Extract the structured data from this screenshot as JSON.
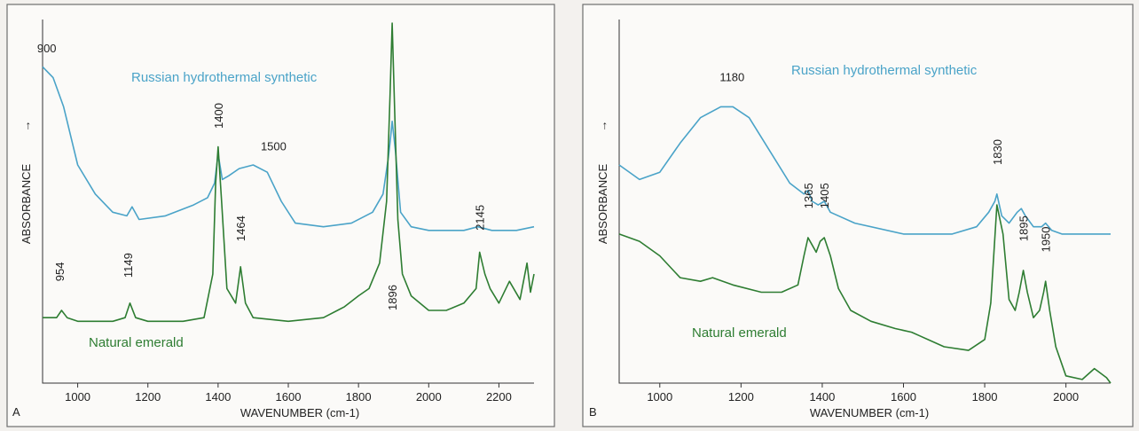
{
  "colors": {
    "synthetic": "#4aa3c8",
    "natural": "#2e7d32"
  },
  "chart_data": [
    {
      "type": "line",
      "panel_label": "A",
      "xlabel": "WAVENUMBER (cm-1)",
      "ylabel": "ABSORBANCE",
      "ylabel_arrow": "→",
      "xlim": [
        900,
        2300
      ],
      "xticks": [
        1000,
        1200,
        1400,
        1600,
        1800,
        2000,
        2200
      ],
      "ylim": [
        0,
        1
      ],
      "series": [
        {
          "name": "Russian hydrothermal synthetic",
          "color": "#4aa3c8",
          "x": [
            900,
            930,
            960,
            1000,
            1050,
            1100,
            1140,
            1155,
            1175,
            1250,
            1330,
            1370,
            1390,
            1400,
            1412,
            1430,
            1460,
            1500,
            1540,
            1580,
            1620,
            1700,
            1780,
            1840,
            1870,
            1885,
            1892,
            1896,
            1905,
            1920,
            1950,
            2000,
            2100,
            2140,
            2180,
            2250,
            2300
          ],
          "y": [
            0.87,
            0.84,
            0.76,
            0.6,
            0.52,
            0.47,
            0.46,
            0.485,
            0.45,
            0.46,
            0.49,
            0.51,
            0.55,
            0.63,
            0.56,
            0.57,
            0.59,
            0.6,
            0.58,
            0.5,
            0.44,
            0.43,
            0.44,
            0.47,
            0.52,
            0.62,
            0.68,
            0.72,
            0.64,
            0.47,
            0.43,
            0.42,
            0.42,
            0.43,
            0.42,
            0.42,
            0.43
          ]
        },
        {
          "name": "Natural emerald",
          "color": "#2e7d32",
          "x": [
            900,
            940,
            954,
            970,
            1000,
            1100,
            1135,
            1149,
            1165,
            1200,
            1300,
            1360,
            1385,
            1393,
            1400,
            1410,
            1425,
            1450,
            1464,
            1478,
            1500,
            1600,
            1700,
            1760,
            1800,
            1830,
            1860,
            1880,
            1890,
            1896,
            1903,
            1912,
            1925,
            1950,
            2000,
            2050,
            2100,
            2135,
            2145,
            2160,
            2175,
            2200,
            2230,
            2260,
            2280,
            2290,
            2300
          ],
          "y": [
            0.18,
            0.18,
            0.2,
            0.18,
            0.17,
            0.17,
            0.18,
            0.22,
            0.18,
            0.17,
            0.17,
            0.18,
            0.3,
            0.55,
            0.65,
            0.5,
            0.26,
            0.22,
            0.32,
            0.22,
            0.18,
            0.17,
            0.18,
            0.21,
            0.24,
            0.26,
            0.33,
            0.5,
            0.8,
            0.99,
            0.75,
            0.45,
            0.3,
            0.24,
            0.2,
            0.2,
            0.22,
            0.26,
            0.36,
            0.3,
            0.26,
            0.22,
            0.28,
            0.23,
            0.33,
            0.25,
            0.3
          ]
        }
      ],
      "series_labels": [
        "Russian hydrothermal synthetic",
        "Natural emerald"
      ],
      "annotations": [
        {
          "text": "900",
          "x": 912,
          "y": 0.91,
          "orient": "h"
        },
        {
          "text": "1500",
          "x": 1558,
          "y": 0.64,
          "orient": "h"
        },
        {
          "text": "954",
          "x": 948,
          "y": 0.28,
          "orient": "v"
        },
        {
          "text": "1149",
          "x": 1142,
          "y": 0.29,
          "orient": "v"
        },
        {
          "text": "1400",
          "x": 1400,
          "y": 0.7,
          "orient": "v"
        },
        {
          "text": "1464",
          "x": 1464,
          "y": 0.39,
          "orient": "v"
        },
        {
          "text": "1896",
          "x": 1896,
          "y": 0.2,
          "orient": "v"
        },
        {
          "text": "2145",
          "x": 2145,
          "y": 0.42,
          "orient": "v"
        }
      ]
    },
    {
      "type": "line",
      "panel_label": "B",
      "xlabel": "WAVENUMBER (cm-1)",
      "ylabel": "ABSORBANCE",
      "ylabel_arrow": "→",
      "xlim": [
        900,
        2110
      ],
      "xticks": [
        1000,
        1200,
        1400,
        1600,
        1800,
        2000
      ],
      "ylim": [
        0,
        1
      ],
      "series": [
        {
          "name": "Russian hydrothermal  synthetic",
          "color": "#4aa3c8",
          "x": [
            900,
            950,
            1000,
            1050,
            1100,
            1150,
            1180,
            1220,
            1270,
            1320,
            1355,
            1365,
            1375,
            1390,
            1405,
            1420,
            1480,
            1600,
            1720,
            1780,
            1810,
            1825,
            1830,
            1842,
            1860,
            1880,
            1890,
            1900,
            1920,
            1940,
            1950,
            1965,
            1990,
            2050,
            2110
          ],
          "y": [
            0.6,
            0.56,
            0.58,
            0.66,
            0.73,
            0.76,
            0.76,
            0.73,
            0.64,
            0.55,
            0.52,
            0.53,
            0.5,
            0.49,
            0.5,
            0.47,
            0.44,
            0.41,
            0.41,
            0.43,
            0.47,
            0.5,
            0.52,
            0.46,
            0.44,
            0.47,
            0.48,
            0.46,
            0.43,
            0.43,
            0.44,
            0.42,
            0.41,
            0.41,
            0.41
          ]
        },
        {
          "name": "Natural emerald",
          "color": "#2e7d32",
          "x": [
            900,
            950,
            1000,
            1050,
            1100,
            1130,
            1180,
            1250,
            1300,
            1340,
            1355,
            1365,
            1375,
            1385,
            1395,
            1405,
            1420,
            1440,
            1470,
            1520,
            1580,
            1620,
            1640,
            1700,
            1760,
            1800,
            1815,
            1830,
            1845,
            1860,
            1875,
            1885,
            1895,
            1905,
            1920,
            1935,
            1945,
            1950,
            1960,
            1975,
            2000,
            2040,
            2070,
            2100,
            2110
          ],
          "y": [
            0.41,
            0.39,
            0.35,
            0.29,
            0.28,
            0.29,
            0.27,
            0.25,
            0.25,
            0.27,
            0.35,
            0.4,
            0.38,
            0.36,
            0.39,
            0.4,
            0.35,
            0.26,
            0.2,
            0.17,
            0.15,
            0.14,
            0.13,
            0.1,
            0.09,
            0.12,
            0.22,
            0.49,
            0.41,
            0.23,
            0.2,
            0.25,
            0.31,
            0.25,
            0.18,
            0.2,
            0.25,
            0.28,
            0.2,
            0.1,
            0.02,
            0.01,
            0.04,
            0.015,
            0.0
          ]
        }
      ],
      "series_labels": [
        "Russian hydrothermal  synthetic",
        "Natural emerald"
      ],
      "annotations": [
        {
          "text": "1180",
          "x": 1178,
          "y": 0.83,
          "orient": "h"
        },
        {
          "text": "1365",
          "x": 1365,
          "y": 0.48,
          "orient": "v"
        },
        {
          "text": "1405",
          "x": 1405,
          "y": 0.48,
          "orient": "v"
        },
        {
          "text": "1830",
          "x": 1830,
          "y": 0.6,
          "orient": "v"
        },
        {
          "text": "1895",
          "x": 1895,
          "y": 0.39,
          "orient": "v"
        },
        {
          "text": "1950",
          "x": 1950,
          "y": 0.36,
          "orient": "v"
        }
      ]
    }
  ]
}
